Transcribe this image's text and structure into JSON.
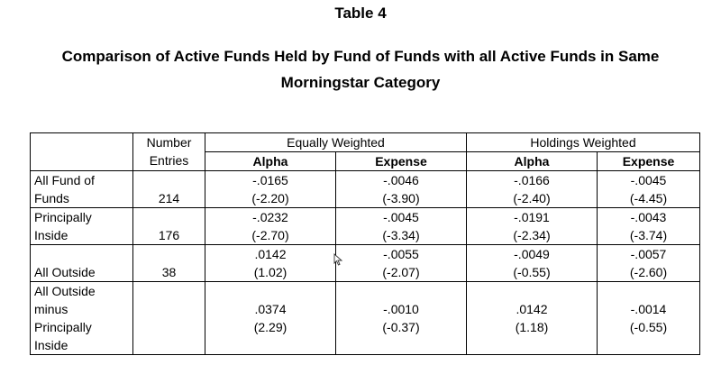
{
  "table_number": "Table 4",
  "title_line1": "Comparison of Active Funds Held by Fund of Funds with all Active Funds in Same",
  "title_line2": "Morningstar Category",
  "header": {
    "number": "Number",
    "entries": "Entries",
    "equally_weighted": "Equally Weighted",
    "holdings_weighted": "Holdings Weighted",
    "alpha": "Alpha",
    "expense": "Expense"
  },
  "rows": [
    {
      "label": [
        "All Fund of",
        "Funds"
      ],
      "entries": "214",
      "ew_alpha": [
        "-.0165",
        "(-2.20)"
      ],
      "ew_expense": [
        "-.0046",
        "(-3.90)"
      ],
      "hw_alpha": [
        "-.0166",
        "(-2.40)"
      ],
      "hw_expense": [
        "-.0045",
        "(-4.45)"
      ]
    },
    {
      "label": [
        "Principally",
        "Inside"
      ],
      "entries": "176",
      "ew_alpha": [
        "-.0232",
        "(-2.70)"
      ],
      "ew_expense": [
        "-.0045",
        "(-3.34)"
      ],
      "hw_alpha": [
        "-.0191",
        "(-2.34)"
      ],
      "hw_expense": [
        "-.0043",
        "(-3.74)"
      ]
    },
    {
      "label": [
        "",
        "All Outside"
      ],
      "entries": "38",
      "ew_alpha": [
        ".0142",
        "(1.02)"
      ],
      "ew_expense": [
        "-.0055",
        "(-2.07)"
      ],
      "hw_alpha": [
        "-.0049",
        "(-0.55)"
      ],
      "hw_expense": [
        "-.0057",
        "(-2.60)"
      ]
    },
    {
      "label": [
        "All Outside",
        "minus",
        "Principally",
        "Inside"
      ],
      "entries": "",
      "ew_alpha": [
        ".0374",
        "(2.29)"
      ],
      "ew_expense": [
        "-.0010",
        "(-0.37)"
      ],
      "hw_alpha": [
        ".0142",
        "(1.18)"
      ],
      "hw_expense": [
        "-.0014",
        "(-0.55)"
      ]
    }
  ]
}
